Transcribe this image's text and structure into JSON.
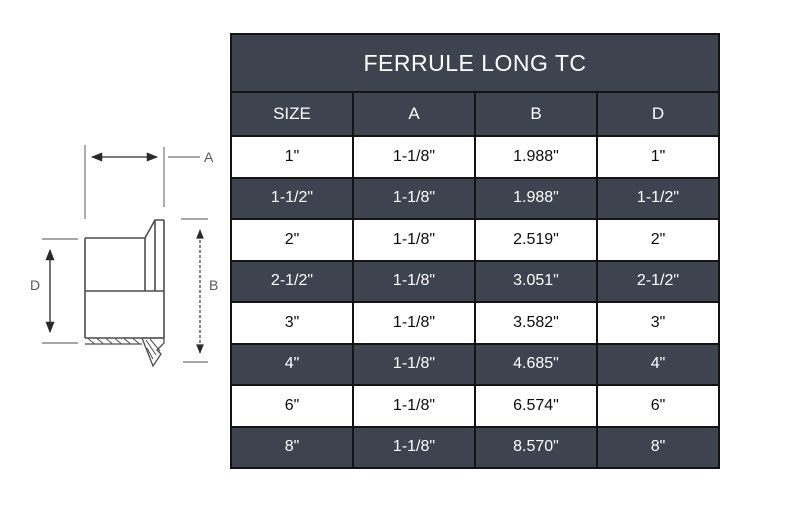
{
  "title": "FERRULE LONG TC",
  "diagram": {
    "label_a": "A",
    "label_b": "B",
    "label_d": "D"
  },
  "table": {
    "columns": [
      "SIZE",
      "A",
      "B",
      "D"
    ],
    "rows": [
      [
        "1\"",
        "1-1/8\"",
        "1.988\"",
        "1\""
      ],
      [
        "1-1/2\"",
        "1-1/8\"",
        "1.988\"",
        "1-1/2\""
      ],
      [
        "2\"",
        "1-1/8\"",
        "2.519\"",
        "2\""
      ],
      [
        "2-1/2\"",
        "1-1/8\"",
        "3.051\"",
        "2-1/2\""
      ],
      [
        "3\"",
        "1-1/8\"",
        "3.582\"",
        "3\""
      ],
      [
        "4\"",
        "1-1/8\"",
        "4.685\"",
        "4\""
      ],
      [
        "6\"",
        "1-1/8\"",
        "6.574\"",
        "6\""
      ],
      [
        "8\"",
        "1-1/8\"",
        "8.570\"",
        "8\""
      ]
    ]
  },
  "colors": {
    "dark_band": "#3e4350",
    "table_border": "#131313",
    "row_light_bg": "#ffffff",
    "text_light": "#ffffff",
    "text_dark": "#0d0d0d",
    "drawing_line": "#4d4d4d",
    "extension_line": "#8a8a8a",
    "dimension_line": "#2a2a2a"
  }
}
